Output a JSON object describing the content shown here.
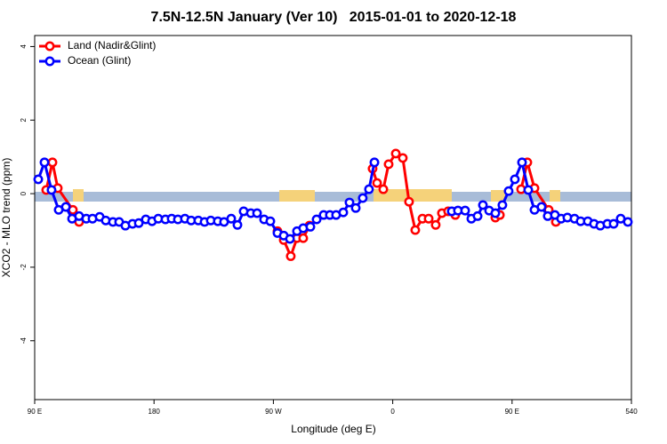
{
  "chart_data": {
    "type": "line",
    "title": "7.5N-12.5N January (Ver 10)   2015-01-01 to 2020-12-18",
    "x_label": "Longitude (deg E)",
    "y_label": "XCO2 - MLO trend (ppm)",
    "xlim": [
      90,
      540
    ],
    "xticks": [
      {
        "value": 90,
        "label": "90 E"
      },
      180,
      {
        "value": 270,
        "label": "90 W"
      },
      {
        "value": 360,
        "label": "0"
      },
      {
        "value": 450,
        "label": "90 E"
      },
      540
    ],
    "ylim": [
      -5.6,
      4.3
    ],
    "yticks": [
      -4,
      -2,
      0,
      2,
      4
    ],
    "legend": "top-left",
    "series": [
      {
        "name": "Land (Nadir&Glint)",
        "color": "#ff0000",
        "x": [
          98.7,
          103.4,
          107.4,
          118.8,
          123.5,
          200,
          273.1,
          277.8,
          283.1,
          287.8,
          292.5,
          297.2,
          320,
          344.8,
          348.2,
          352.9,
          356.9,
          362.3,
          367.6,
          372.3,
          377.0,
          382.4,
          387.1,
          392.4,
          397.1,
          401.8,
          407.2,
          420,
          437.4,
          440.8,
          450,
          456.8,
          461.5,
          466.9,
          477.6,
          483.0
        ],
        "values": [
          0.1,
          0.85,
          0.15,
          -0.44,
          -0.77,
          null,
          -1.02,
          -1.26,
          -1.7,
          -1.21,
          -1.21,
          -0.87,
          null,
          0.68,
          0.29,
          0.12,
          0.8,
          1.09,
          0.97,
          -0.22,
          -0.99,
          -0.68,
          -0.68,
          -0.85,
          -0.53,
          -0.48,
          -0.58,
          null,
          -0.65,
          -0.58,
          null,
          0.12,
          0.85,
          0.15,
          -0.44,
          -0.77
        ]
      },
      {
        "name": "Ocean (Glint)",
        "color": "#0000ff",
        "x": [
          92.7,
          97.4,
          102.7,
          108.1,
          113.5,
          118.2,
          123.5,
          128.9,
          133.6,
          139.0,
          143.6,
          149.0,
          153.7,
          158.4,
          163.8,
          168.5,
          173.8,
          178.5,
          183.2,
          188.6,
          193.3,
          198.0,
          203.3,
          208.0,
          213.4,
          218.1,
          222.8,
          228.1,
          232.8,
          238.2,
          242.9,
          247.6,
          253.0,
          257.7,
          263.0,
          267.7,
          273.1,
          277.8,
          282.5,
          287.8,
          292.5,
          297.9,
          302.6,
          307.9,
          312.6,
          317.3,
          322.7,
          327.4,
          332.1,
          337.4,
          342.1,
          346.2,
          380,
          404.5,
          409.2,
          414.6,
          419.3,
          424.0,
          428.0,
          432.7,
          437.4,
          442.7,
          447.4,
          452.1,
          457.5,
          462.2,
          466.9,
          472.2,
          476.9,
          482.3,
          487.0,
          491.7,
          497.1,
          501.7,
          507.1,
          511.8,
          516.5,
          521.9,
          526.6,
          531.9,
          537.3
        ],
        "values": [
          0.39,
          0.85,
          0.1,
          -0.44,
          -0.36,
          -0.68,
          -0.61,
          -0.68,
          -0.68,
          -0.63,
          -0.73,
          -0.77,
          -0.77,
          -0.87,
          -0.82,
          -0.8,
          -0.7,
          -0.75,
          -0.68,
          -0.7,
          -0.68,
          -0.7,
          -0.68,
          -0.73,
          -0.73,
          -0.77,
          -0.73,
          -0.75,
          -0.77,
          -0.68,
          -0.85,
          -0.48,
          -0.53,
          -0.53,
          -0.7,
          -0.75,
          -1.07,
          -1.14,
          -1.23,
          -1.02,
          -0.94,
          -0.9,
          -0.7,
          -0.58,
          -0.58,
          -0.58,
          -0.51,
          -0.24,
          -0.39,
          -0.12,
          0.12,
          0.85,
          null,
          -0.48,
          -0.46,
          -0.46,
          -0.68,
          -0.61,
          -0.31,
          -0.46,
          -0.53,
          -0.31,
          0.07,
          0.39,
          0.85,
          0.1,
          -0.44,
          -0.36,
          -0.61,
          -0.58,
          -0.68,
          -0.65,
          -0.68,
          -0.75,
          -0.75,
          -0.82,
          -0.87,
          -0.82,
          -0.82,
          -0.68,
          -0.77
        ]
      }
    ]
  }
}
